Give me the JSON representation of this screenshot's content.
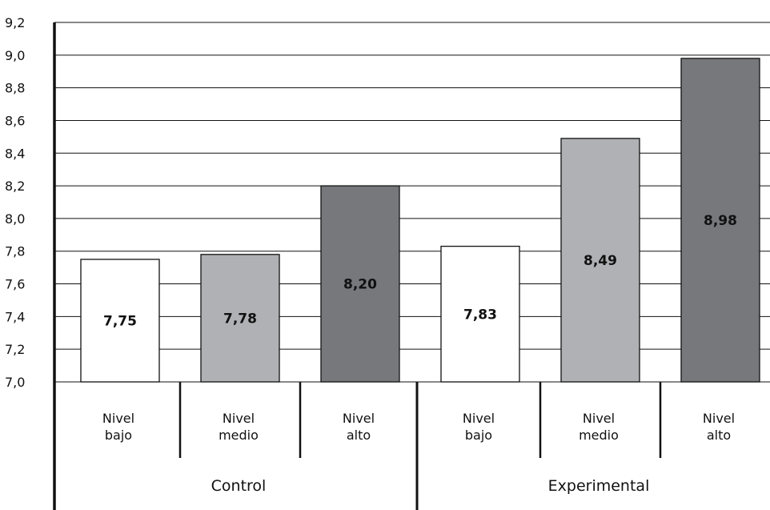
{
  "chart_data": {
    "type": "bar",
    "ylim": [
      7.0,
      9.2
    ],
    "yticks": [
      "7,0",
      "7,2",
      "7,4",
      "7,6",
      "7,8",
      "8,0",
      "8,2",
      "8,4",
      "8,6",
      "8,8",
      "9,0",
      "9,2"
    ],
    "grid": true,
    "groups": [
      {
        "name": "Control",
        "categories": [
          {
            "label": [
              "Nivel",
              "bajo"
            ],
            "value": 7.75,
            "display": "7,75",
            "color": "#ffffff"
          },
          {
            "label": [
              "Nivel",
              "medio"
            ],
            "value": 7.78,
            "display": "7,78",
            "color": "#b0b1b4"
          },
          {
            "label": [
              "Nivel",
              "alto"
            ],
            "value": 8.2,
            "display": "8,20",
            "color": "#77787c"
          }
        ]
      },
      {
        "name": "Experimental",
        "categories": [
          {
            "label": [
              "Nivel",
              "bajo"
            ],
            "value": 7.83,
            "display": "7,83",
            "color": "#ffffff"
          },
          {
            "label": [
              "Nivel",
              "medio"
            ],
            "value": 8.49,
            "display": "8,49",
            "color": "#b0b1b4"
          },
          {
            "label": [
              "Nivel",
              "alto"
            ],
            "value": 8.98,
            "display": "8,98",
            "color": "#77787c"
          }
        ]
      }
    ]
  }
}
